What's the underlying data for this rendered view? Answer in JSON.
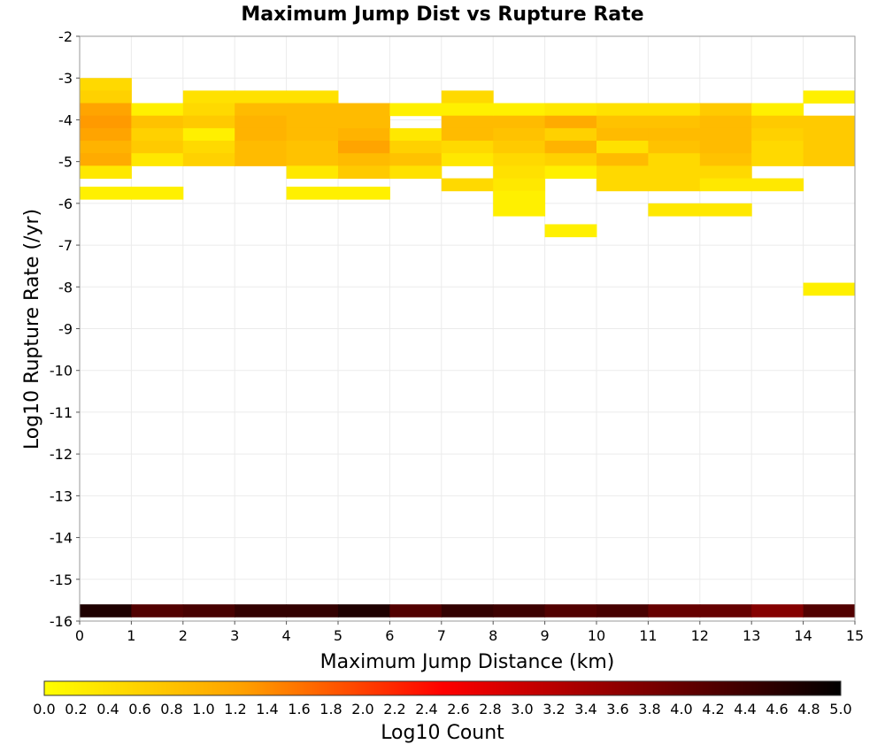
{
  "chart_data": {
    "type": "heatmap",
    "title": "Maximum Jump Dist vs Rupture Rate",
    "xlabel": "Maximum Jump Distance (km)",
    "ylabel": "Log10 Rupture Rate (/yr)",
    "xlim": [
      0,
      15
    ],
    "ylim": [
      -16,
      -2
    ],
    "x_ticks": [
      "0",
      "1",
      "2",
      "3",
      "4",
      "5",
      "6",
      "7",
      "8",
      "9",
      "10",
      "11",
      "12",
      "13",
      "14",
      "15"
    ],
    "y_ticks": [
      "-2",
      "-3",
      "-4",
      "-5",
      "-6",
      "-7",
      "-8",
      "-9",
      "-10",
      "-11",
      "-12",
      "-13",
      "-14",
      "-15",
      "-16"
    ],
    "x_bin_width": 1,
    "y_bin_height": 0.3,
    "grid": true,
    "colorbar": {
      "label": "Log10 Count",
      "min": 0,
      "max": 5,
      "position": "bottom",
      "ticks": [
        "0.0",
        "0.2",
        "0.4",
        "0.6",
        "0.8",
        "1.0",
        "1.2",
        "1.4",
        "1.6",
        "1.8",
        "2.0",
        "2.2",
        "2.4",
        "2.6",
        "2.8",
        "3.0",
        "3.2",
        "3.4",
        "3.6",
        "3.8",
        "4.0",
        "4.2",
        "4.4",
        "4.6",
        "4.8",
        "5.0"
      ],
      "stops": [
        "#ffff00",
        "#ffa000",
        "#ff0000",
        "#800000",
        "#000000"
      ]
    },
    "cells": [
      {
        "x": 0,
        "y": -3.3,
        "v": 0.5
      },
      {
        "x": 0,
        "y": -3.6,
        "v": 0.6
      },
      {
        "x": 0,
        "y": -3.9,
        "v": 1.2
      },
      {
        "x": 0,
        "y": -4.2,
        "v": 1.3
      },
      {
        "x": 0,
        "y": -4.5,
        "v": 1.2
      },
      {
        "x": 0,
        "y": -4.8,
        "v": 1.0
      },
      {
        "x": 0,
        "y": -5.1,
        "v": 1.1
      },
      {
        "x": 0,
        "y": -5.4,
        "v": 0.3
      },
      {
        "x": 0,
        "y": -5.9,
        "v": 0.2
      },
      {
        "x": 1,
        "y": -3.9,
        "v": 0.2
      },
      {
        "x": 1,
        "y": -4.2,
        "v": 0.8
      },
      {
        "x": 1,
        "y": -4.5,
        "v": 0.6
      },
      {
        "x": 1,
        "y": -4.8,
        "v": 0.7
      },
      {
        "x": 1,
        "y": -5.1,
        "v": 0.3
      },
      {
        "x": 1,
        "y": -5.9,
        "v": 0.2
      },
      {
        "x": 2,
        "y": -3.6,
        "v": 0.4
      },
      {
        "x": 2,
        "y": -3.9,
        "v": 0.5
      },
      {
        "x": 2,
        "y": -4.2,
        "v": 0.7
      },
      {
        "x": 2,
        "y": -4.5,
        "v": 0.2
      },
      {
        "x": 2,
        "y": -4.8,
        "v": 0.5
      },
      {
        "x": 2,
        "y": -5.1,
        "v": 0.6
      },
      {
        "x": 3,
        "y": -3.6,
        "v": 0.4
      },
      {
        "x": 3,
        "y": -3.9,
        "v": 0.9
      },
      {
        "x": 3,
        "y": -4.2,
        "v": 1.0
      },
      {
        "x": 3,
        "y": -4.5,
        "v": 1.0
      },
      {
        "x": 3,
        "y": -4.8,
        "v": 0.9
      },
      {
        "x": 3,
        "y": -5.1,
        "v": 0.9
      },
      {
        "x": 4,
        "y": -3.6,
        "v": 0.4
      },
      {
        "x": 4,
        "y": -3.9,
        "v": 0.9
      },
      {
        "x": 4,
        "y": -4.2,
        "v": 0.9
      },
      {
        "x": 4,
        "y": -4.5,
        "v": 0.9
      },
      {
        "x": 4,
        "y": -4.8,
        "v": 0.8
      },
      {
        "x": 4,
        "y": -5.1,
        "v": 0.8
      },
      {
        "x": 4,
        "y": -5.4,
        "v": 0.3
      },
      {
        "x": 4,
        "y": -5.9,
        "v": 0.2
      },
      {
        "x": 5,
        "y": -3.9,
        "v": 0.9
      },
      {
        "x": 5,
        "y": -4.2,
        "v": 0.9
      },
      {
        "x": 5,
        "y": -4.5,
        "v": 1.0
      },
      {
        "x": 5,
        "y": -4.8,
        "v": 1.2
      },
      {
        "x": 5,
        "y": -5.1,
        "v": 0.9
      },
      {
        "x": 5,
        "y": -5.4,
        "v": 0.7
      },
      {
        "x": 5,
        "y": -5.9,
        "v": 0.2
      },
      {
        "x": 6,
        "y": -3.9,
        "v": 0.2
      },
      {
        "x": 6,
        "y": -4.5,
        "v": 0.3
      },
      {
        "x": 6,
        "y": -4.8,
        "v": 0.6
      },
      {
        "x": 6,
        "y": -5.1,
        "v": 0.8
      },
      {
        "x": 6,
        "y": -5.4,
        "v": 0.4
      },
      {
        "x": 7,
        "y": -3.6,
        "v": 0.5
      },
      {
        "x": 7,
        "y": -3.9,
        "v": 0.2
      },
      {
        "x": 7,
        "y": -4.2,
        "v": 0.9
      },
      {
        "x": 7,
        "y": -4.5,
        "v": 0.9
      },
      {
        "x": 7,
        "y": -4.8,
        "v": 0.5
      },
      {
        "x": 7,
        "y": -5.1,
        "v": 0.3
      },
      {
        "x": 7,
        "y": -5.7,
        "v": 0.5
      },
      {
        "x": 8,
        "y": -3.9,
        "v": 0.2
      },
      {
        "x": 8,
        "y": -4.2,
        "v": 0.9
      },
      {
        "x": 8,
        "y": -4.5,
        "v": 0.8
      },
      {
        "x": 8,
        "y": -4.8,
        "v": 0.7
      },
      {
        "x": 8,
        "y": -5.1,
        "v": 0.5
      },
      {
        "x": 8,
        "y": -5.4,
        "v": 0.4
      },
      {
        "x": 8,
        "y": -5.7,
        "v": 0.3
      },
      {
        "x": 8,
        "y": -6.0,
        "v": 0.2
      },
      {
        "x": 8,
        "y": -6.3,
        "v": 0.2
      },
      {
        "x": 9,
        "y": -3.9,
        "v": 0.3
      },
      {
        "x": 9,
        "y": -4.2,
        "v": 1.1
      },
      {
        "x": 9,
        "y": -4.5,
        "v": 0.6
      },
      {
        "x": 9,
        "y": -4.8,
        "v": 1.0
      },
      {
        "x": 9,
        "y": -5.1,
        "v": 0.6
      },
      {
        "x": 9,
        "y": -5.4,
        "v": 0.2
      },
      {
        "x": 9,
        "y": -6.8,
        "v": 0.2
      },
      {
        "x": 10,
        "y": -3.9,
        "v": 0.4
      },
      {
        "x": 10,
        "y": -4.2,
        "v": 0.8
      },
      {
        "x": 10,
        "y": -4.5,
        "v": 0.9
      },
      {
        "x": 10,
        "y": -4.8,
        "v": 0.4
      },
      {
        "x": 10,
        "y": -5.1,
        "v": 0.9
      },
      {
        "x": 10,
        "y": -5.4,
        "v": 0.5
      },
      {
        "x": 10,
        "y": -5.7,
        "v": 0.5
      },
      {
        "x": 11,
        "y": -3.9,
        "v": 0.4
      },
      {
        "x": 11,
        "y": -4.2,
        "v": 0.8
      },
      {
        "x": 11,
        "y": -4.5,
        "v": 0.9
      },
      {
        "x": 11,
        "y": -4.8,
        "v": 0.8
      },
      {
        "x": 11,
        "y": -5.1,
        "v": 0.5
      },
      {
        "x": 11,
        "y": -5.4,
        "v": 0.5
      },
      {
        "x": 11,
        "y": -5.7,
        "v": 0.5
      },
      {
        "x": 11,
        "y": -6.3,
        "v": 0.3
      },
      {
        "x": 12,
        "y": -3.9,
        "v": 0.7
      },
      {
        "x": 12,
        "y": -4.2,
        "v": 0.9
      },
      {
        "x": 12,
        "y": -4.5,
        "v": 0.9
      },
      {
        "x": 12,
        "y": -4.8,
        "v": 0.9
      },
      {
        "x": 12,
        "y": -5.1,
        "v": 0.8
      },
      {
        "x": 12,
        "y": -5.4,
        "v": 0.5
      },
      {
        "x": 12,
        "y": -5.7,
        "v": 0.3
      },
      {
        "x": 12,
        "y": -6.3,
        "v": 0.3
      },
      {
        "x": 13,
        "y": -3.9,
        "v": 0.2
      },
      {
        "x": 13,
        "y": -4.2,
        "v": 0.7
      },
      {
        "x": 13,
        "y": -4.5,
        "v": 0.6
      },
      {
        "x": 13,
        "y": -4.8,
        "v": 0.5
      },
      {
        "x": 13,
        "y": -5.1,
        "v": 0.5
      },
      {
        "x": 13,
        "y": -5.7,
        "v": 0.3
      },
      {
        "x": 14,
        "y": -3.6,
        "v": 0.2
      },
      {
        "x": 14,
        "y": -4.2,
        "v": 0.7
      },
      {
        "x": 14,
        "y": -4.5,
        "v": 0.7
      },
      {
        "x": 14,
        "y": -4.8,
        "v": 0.7
      },
      {
        "x": 14,
        "y": -5.1,
        "v": 0.7
      },
      {
        "x": 14,
        "y": -8.2,
        "v": 0.2
      },
      {
        "x": 0,
        "y": -15.9,
        "v": 4.7
      },
      {
        "x": 1,
        "y": -15.9,
        "v": 4.2
      },
      {
        "x": 2,
        "y": -15.9,
        "v": 4.3
      },
      {
        "x": 3,
        "y": -15.9,
        "v": 4.5
      },
      {
        "x": 4,
        "y": -15.9,
        "v": 4.5
      },
      {
        "x": 5,
        "y": -15.9,
        "v": 4.7
      },
      {
        "x": 6,
        "y": -15.9,
        "v": 4.2
      },
      {
        "x": 7,
        "y": -15.9,
        "v": 4.5
      },
      {
        "x": 8,
        "y": -15.9,
        "v": 4.4
      },
      {
        "x": 9,
        "y": -15.9,
        "v": 4.2
      },
      {
        "x": 10,
        "y": -15.9,
        "v": 4.3
      },
      {
        "x": 11,
        "y": -15.9,
        "v": 4.0
      },
      {
        "x": 12,
        "y": -15.9,
        "v": 4.0
      },
      {
        "x": 13,
        "y": -15.9,
        "v": 3.7
      },
      {
        "x": 14,
        "y": -15.9,
        "v": 4.2
      }
    ]
  }
}
